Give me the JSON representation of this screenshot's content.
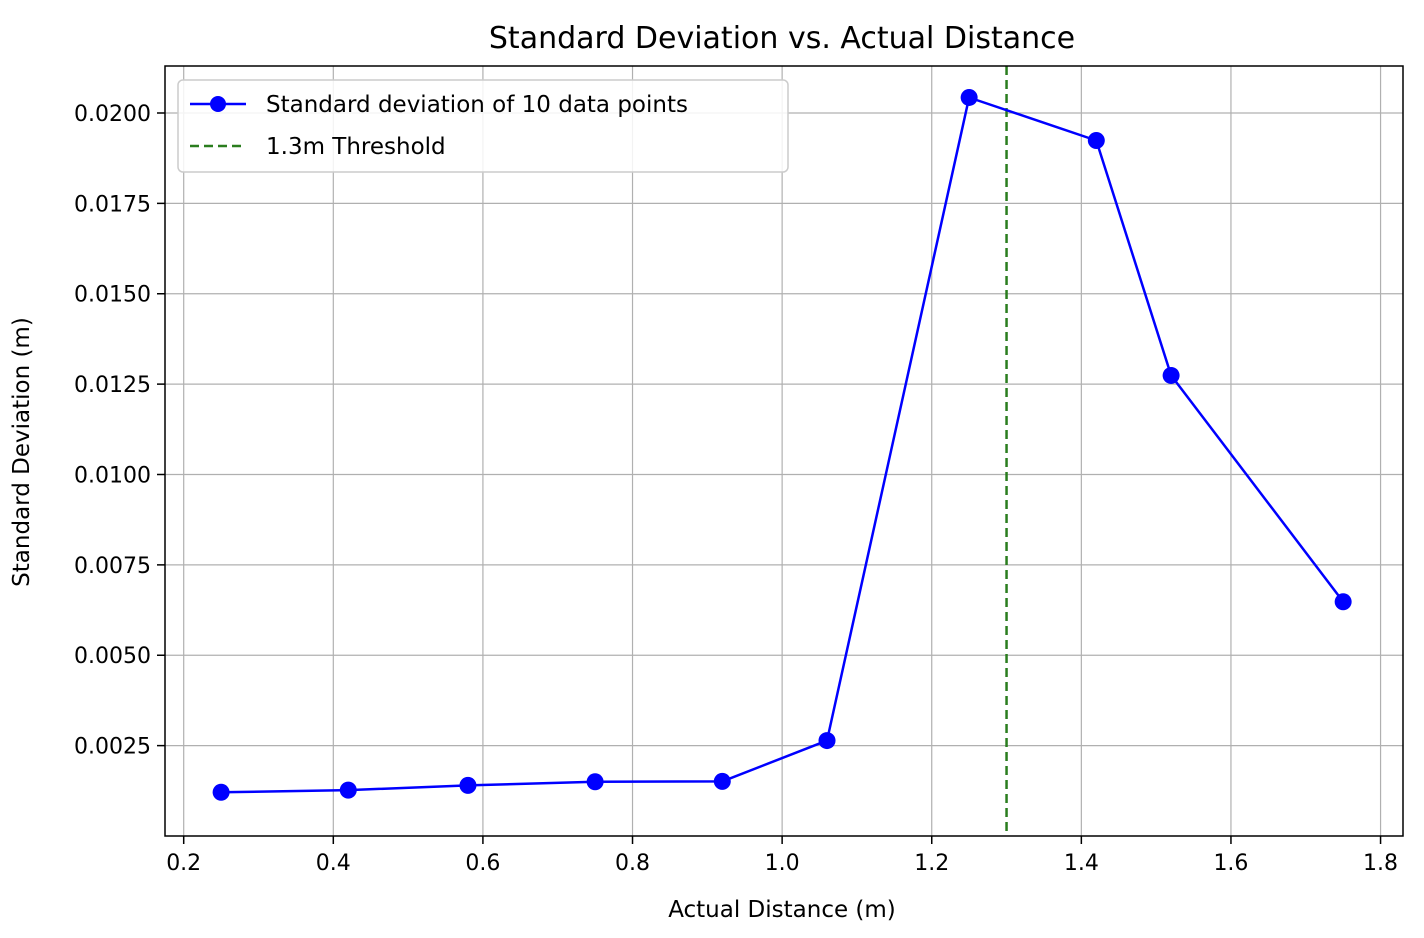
{
  "chart_data": {
    "type": "line",
    "title": "Standard Deviation vs. Actual Distance",
    "xlabel": "Actual Distance (m)",
    "ylabel": "Standard Deviation (m)",
    "xlim": [
      0.175,
      1.83
    ],
    "ylim": [
      0.0,
      0.0213
    ],
    "xticks": [
      "0.2",
      "0.4",
      "0.6",
      "0.8",
      "1.0",
      "1.2",
      "1.4",
      "1.6",
      "1.8"
    ],
    "xtick_values": [
      0.2,
      0.4,
      0.6,
      0.8,
      1.0,
      1.2,
      1.4,
      1.6,
      1.8
    ],
    "yticks": [
      "0.0025",
      "0.0050",
      "0.0075",
      "0.0100",
      "0.0125",
      "0.0150",
      "0.0175",
      "0.0200"
    ],
    "ytick_values": [
      0.0025,
      0.005,
      0.0075,
      0.01,
      0.0125,
      0.015,
      0.0175,
      0.02
    ],
    "grid": true,
    "legend_position": "top-left",
    "series": [
      {
        "name": "Standard deviation of 10 data points",
        "color": "#0000ff",
        "marker": "circle",
        "x": [
          0.25,
          0.42,
          0.58,
          0.75,
          0.92,
          1.06,
          1.25,
          1.42,
          1.52,
          1.75
        ],
        "y": [
          0.00121,
          0.00127,
          0.0014,
          0.0015,
          0.00151,
          0.00264,
          0.02043,
          0.01924,
          0.01274,
          0.00648
        ]
      }
    ],
    "threshold": {
      "name": "1.3m Threshold",
      "x": 1.3,
      "color": "#2a7d1e",
      "style": "dashed"
    }
  }
}
